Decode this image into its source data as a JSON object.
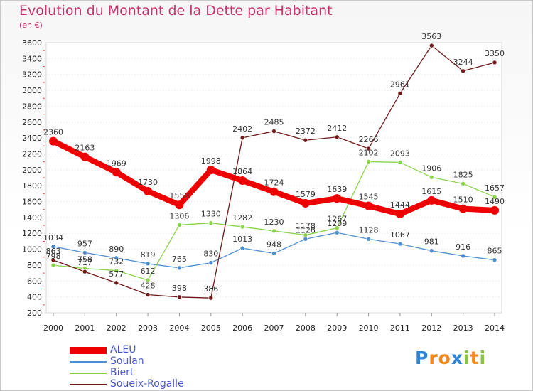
{
  "chart_data": {
    "type": "line",
    "title": "Evolution du Montant de la Dette par Habitant",
    "unit_label": "(en €)",
    "x": [
      "2000",
      "2001",
      "2002",
      "2003",
      "2004",
      "2005",
      "2006",
      "2007",
      "2008",
      "2009",
      "2010",
      "2011",
      "2012",
      "2013",
      "2014"
    ],
    "ylim": [
      200,
      3600
    ],
    "yticks": [
      200,
      400,
      600,
      800,
      1000,
      1200,
      1400,
      1600,
      1800,
      2000,
      2200,
      2400,
      2600,
      2800,
      3000,
      3200,
      3400,
      3600
    ],
    "legend_position": "bottom-left",
    "series": [
      {
        "name": "ALEU",
        "color": "#ee0000",
        "values": [
          2360,
          2163,
          1969,
          1730,
          1558,
          1998,
          1864,
          1724,
          1579,
          1639,
          1545,
          1444,
          1615,
          1510,
          1490
        ]
      },
      {
        "name": "Soulan",
        "color": "#4f8fd0",
        "values": [
          1034,
          957,
          890,
          819,
          765,
          830,
          1013,
          948,
          1128,
          1209,
          1128,
          1067,
          981,
          916,
          865
        ]
      },
      {
        "name": "Biert",
        "color": "#8ad44a",
        "values": [
          798,
          758,
          732,
          612,
          1306,
          1330,
          1282,
          1230,
          1178,
          1267,
          2102,
          2093,
          1906,
          1825,
          1657
        ]
      },
      {
        "name": "Soueix-Rogalle",
        "color": "#6e1818",
        "values": [
          863,
          717,
          577,
          428,
          398,
          386,
          2402,
          2485,
          2372,
          2412,
          2266,
          2961,
          3563,
          3244,
          3350
        ]
      }
    ]
  },
  "logo": {
    "letters": [
      "P",
      "r",
      "o",
      "x",
      "i",
      "t",
      "i"
    ],
    "colors": [
      "#2e84d8",
      "#f08a1c",
      "#f08a1c",
      "#2e84d8",
      "#8ac43c",
      "#f08a1c",
      "#8ac43c"
    ]
  }
}
